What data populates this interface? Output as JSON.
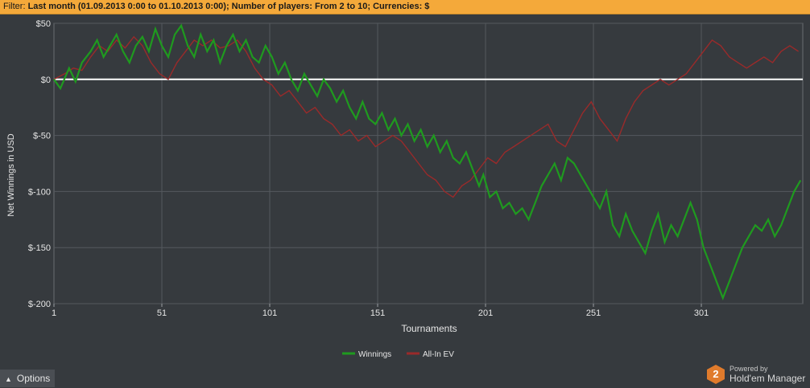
{
  "filter": {
    "label": "Filter:",
    "value": "Last month (01.09.2013 0:00 to 01.10.2013 0:00); Number of players: From 2 to 10; Currencies: $"
  },
  "options_label": "Options",
  "brand": {
    "powered": "Powered by",
    "name": "Hold'em Manager",
    "badge": "2"
  },
  "colors": {
    "winnings": "#1f9a1f",
    "allin_ev": "#9a2a2a",
    "zero_line": "#ffffff",
    "background": "#363a3e",
    "grid": "#55595e"
  },
  "chart_data": {
    "type": "line",
    "xlabel": "Tournaments",
    "ylabel": "Net Winnings in USD",
    "xlim": [
      1,
      348
    ],
    "ylim": [
      -200,
      50
    ],
    "xticks": [
      1,
      51,
      101,
      151,
      201,
      251,
      301
    ],
    "yticks": [
      50,
      0,
      -50,
      -100,
      -150,
      -200
    ],
    "ytick_labels": [
      "$50",
      "$0",
      "$-50",
      "$-100",
      "$-150",
      "$-200"
    ],
    "grid": true,
    "legend_position": "bottom-center",
    "series": [
      {
        "name": "Winnings",
        "points": [
          [
            1,
            0
          ],
          [
            4,
            -8
          ],
          [
            8,
            10
          ],
          [
            11,
            -2
          ],
          [
            14,
            15
          ],
          [
            18,
            25
          ],
          [
            21,
            35
          ],
          [
            24,
            20
          ],
          [
            27,
            30
          ],
          [
            30,
            40
          ],
          [
            33,
            25
          ],
          [
            36,
            15
          ],
          [
            39,
            30
          ],
          [
            42,
            38
          ],
          [
            45,
            25
          ],
          [
            48,
            45
          ],
          [
            51,
            30
          ],
          [
            54,
            20
          ],
          [
            57,
            40
          ],
          [
            60,
            48
          ],
          [
            63,
            30
          ],
          [
            66,
            20
          ],
          [
            69,
            40
          ],
          [
            72,
            25
          ],
          [
            75,
            35
          ],
          [
            78,
            15
          ],
          [
            81,
            30
          ],
          [
            84,
            40
          ],
          [
            87,
            25
          ],
          [
            90,
            35
          ],
          [
            93,
            20
          ],
          [
            96,
            15
          ],
          [
            99,
            30
          ],
          [
            102,
            20
          ],
          [
            105,
            5
          ],
          [
            108,
            15
          ],
          [
            111,
            0
          ],
          [
            114,
            -10
          ],
          [
            117,
            5
          ],
          [
            120,
            -5
          ],
          [
            123,
            -15
          ],
          [
            126,
            0
          ],
          [
            129,
            -8
          ],
          [
            132,
            -20
          ],
          [
            135,
            -10
          ],
          [
            138,
            -25
          ],
          [
            141,
            -35
          ],
          [
            144,
            -20
          ],
          [
            147,
            -35
          ],
          [
            150,
            -40
          ],
          [
            153,
            -30
          ],
          [
            156,
            -45
          ],
          [
            159,
            -35
          ],
          [
            162,
            -50
          ],
          [
            165,
            -40
          ],
          [
            168,
            -55
          ],
          [
            171,
            -45
          ],
          [
            174,
            -60
          ],
          [
            177,
            -50
          ],
          [
            180,
            -65
          ],
          [
            183,
            -55
          ],
          [
            186,
            -70
          ],
          [
            189,
            -75
          ],
          [
            192,
            -65
          ],
          [
            195,
            -80
          ],
          [
            198,
            -95
          ],
          [
            200,
            -85
          ],
          [
            203,
            -105
          ],
          [
            206,
            -100
          ],
          [
            209,
            -115
          ],
          [
            212,
            -110
          ],
          [
            215,
            -120
          ],
          [
            218,
            -115
          ],
          [
            221,
            -125
          ],
          [
            224,
            -110
          ],
          [
            227,
            -95
          ],
          [
            230,
            -85
          ],
          [
            233,
            -75
          ],
          [
            236,
            -90
          ],
          [
            239,
            -70
          ],
          [
            242,
            -75
          ],
          [
            245,
            -85
          ],
          [
            248,
            -95
          ],
          [
            251,
            -105
          ],
          [
            254,
            -115
          ],
          [
            257,
            -100
          ],
          [
            260,
            -130
          ],
          [
            263,
            -140
          ],
          [
            266,
            -120
          ],
          [
            269,
            -135
          ],
          [
            272,
            -145
          ],
          [
            275,
            -155
          ],
          [
            278,
            -135
          ],
          [
            281,
            -120
          ],
          [
            284,
            -145
          ],
          [
            287,
            -130
          ],
          [
            290,
            -140
          ],
          [
            293,
            -125
          ],
          [
            296,
            -110
          ],
          [
            299,
            -125
          ],
          [
            302,
            -150
          ],
          [
            305,
            -165
          ],
          [
            308,
            -180
          ],
          [
            311,
            -195
          ],
          [
            314,
            -180
          ],
          [
            317,
            -165
          ],
          [
            320,
            -150
          ],
          [
            323,
            -140
          ],
          [
            326,
            -130
          ],
          [
            329,
            -135
          ],
          [
            332,
            -125
          ],
          [
            335,
            -140
          ],
          [
            338,
            -130
          ],
          [
            341,
            -115
          ],
          [
            344,
            -100
          ],
          [
            347,
            -90
          ]
        ]
      },
      {
        "name": "All-In EV",
        "points": [
          [
            1,
            0
          ],
          [
            6,
            5
          ],
          [
            10,
            10
          ],
          [
            14,
            8
          ],
          [
            18,
            20
          ],
          [
            22,
            30
          ],
          [
            26,
            25
          ],
          [
            30,
            35
          ],
          [
            34,
            28
          ],
          [
            38,
            38
          ],
          [
            42,
            30
          ],
          [
            46,
            15
          ],
          [
            50,
            5
          ],
          [
            54,
            0
          ],
          [
            58,
            15
          ],
          [
            62,
            25
          ],
          [
            66,
            35
          ],
          [
            70,
            30
          ],
          [
            74,
            35
          ],
          [
            78,
            28
          ],
          [
            82,
            30
          ],
          [
            86,
            35
          ],
          [
            90,
            25
          ],
          [
            94,
            10
          ],
          [
            98,
            0
          ],
          [
            102,
            -5
          ],
          [
            106,
            -15
          ],
          [
            110,
            -10
          ],
          [
            114,
            -20
          ],
          [
            118,
            -30
          ],
          [
            122,
            -25
          ],
          [
            126,
            -35
          ],
          [
            130,
            -40
          ],
          [
            134,
            -50
          ],
          [
            138,
            -45
          ],
          [
            142,
            -55
          ],
          [
            146,
            -50
          ],
          [
            150,
            -60
          ],
          [
            154,
            -55
          ],
          [
            158,
            -50
          ],
          [
            162,
            -55
          ],
          [
            166,
            -65
          ],
          [
            170,
            -75
          ],
          [
            174,
            -85
          ],
          [
            178,
            -90
          ],
          [
            182,
            -100
          ],
          [
            186,
            -105
          ],
          [
            190,
            -95
          ],
          [
            194,
            -90
          ],
          [
            198,
            -80
          ],
          [
            202,
            -70
          ],
          [
            206,
            -75
          ],
          [
            210,
            -65
          ],
          [
            214,
            -60
          ],
          [
            218,
            -55
          ],
          [
            222,
            -50
          ],
          [
            226,
            -45
          ],
          [
            230,
            -40
          ],
          [
            234,
            -55
          ],
          [
            238,
            -60
          ],
          [
            242,
            -45
          ],
          [
            246,
            -30
          ],
          [
            250,
            -20
          ],
          [
            254,
            -35
          ],
          [
            258,
            -45
          ],
          [
            262,
            -55
          ],
          [
            266,
            -35
          ],
          [
            270,
            -20
          ],
          [
            274,
            -10
          ],
          [
            278,
            -5
          ],
          [
            282,
            0
          ],
          [
            286,
            -5
          ],
          [
            290,
            0
          ],
          [
            294,
            5
          ],
          [
            298,
            15
          ],
          [
            302,
            25
          ],
          [
            306,
            35
          ],
          [
            310,
            30
          ],
          [
            314,
            20
          ],
          [
            318,
            15
          ],
          [
            322,
            10
          ],
          [
            326,
            15
          ],
          [
            330,
            20
          ],
          [
            334,
            15
          ],
          [
            338,
            25
          ],
          [
            342,
            30
          ],
          [
            346,
            25
          ]
        ]
      }
    ]
  }
}
